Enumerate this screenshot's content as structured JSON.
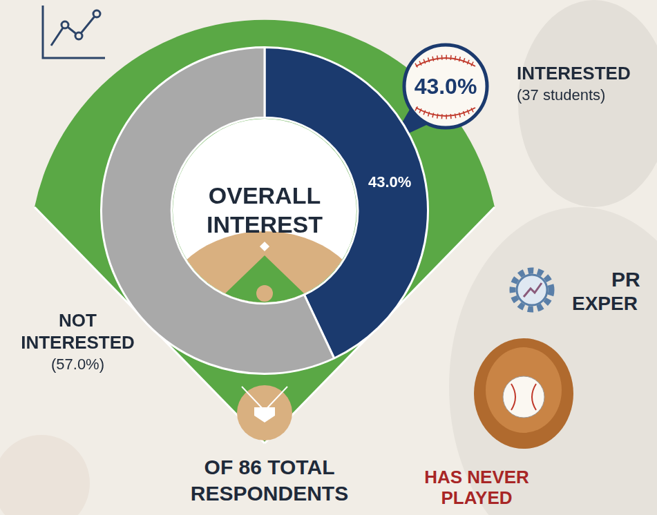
{
  "chart_data": {
    "type": "doughnut",
    "title": "OVERALL INTEREST",
    "subtitle": "OF 86 TOTAL RESPONDENTS",
    "categories": [
      "INTERESTED",
      "NOT INTERESTED"
    ],
    "values": [
      43.0,
      57.0
    ],
    "colors": [
      "#1b3a6e",
      "#a9a9a9"
    ],
    "data_labels": true,
    "value_labels": [
      "43.0%",
      null
    ],
    "callout_labels": [
      "43.0%",
      null
    ],
    "category_notes": [
      "(37 students)",
      "(57.0%)"
    ],
    "annotations": [
      "PR",
      "EXPER",
      "HAS NEVER",
      "PLAYED"
    ]
  }
}
